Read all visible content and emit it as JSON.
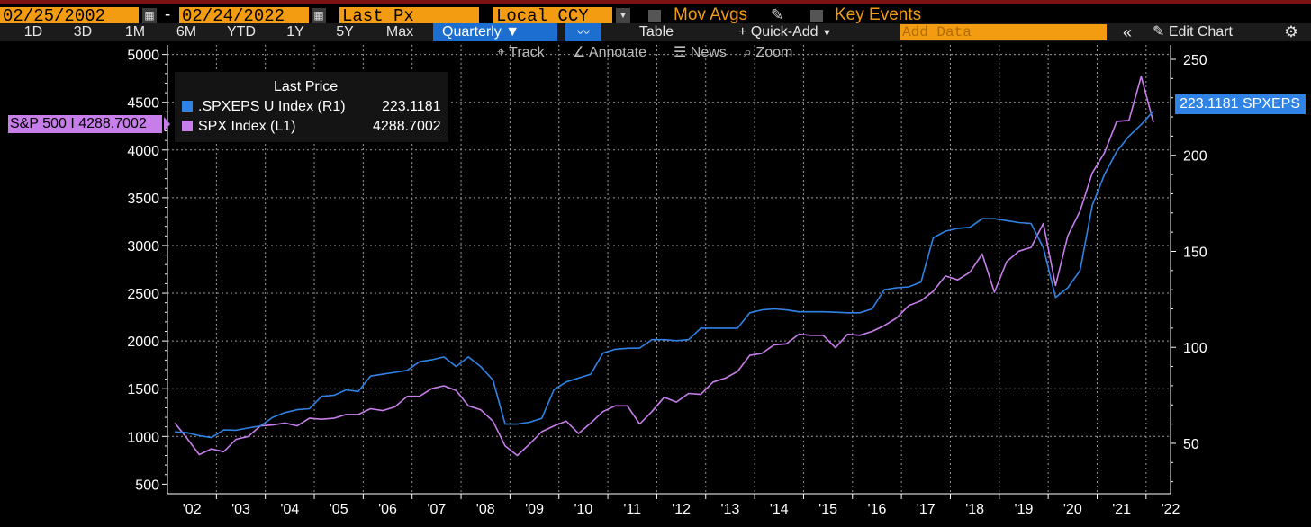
{
  "toolbar": {
    "start_date": "02/25/2002",
    "end_date": "02/24/2022",
    "date_separator": "-",
    "field": "Last Px",
    "currency": "Local CCY",
    "mov_avgs": "Mov Avgs",
    "key_events": "Key Events"
  },
  "periods": [
    "1D",
    "3D",
    "1M",
    "6M",
    "YTD",
    "1Y",
    "5Y",
    "Max"
  ],
  "frequency": "Quarterly",
  "table_label": "Table",
  "quick_add": "+ Quick-Add",
  "add_data_placeholder": "Add Data",
  "edit_chart": "Edit Chart",
  "chart_tools": {
    "track": "Track",
    "annotate": "Annotate",
    "news": "News",
    "zoom": "Zoom"
  },
  "legend": {
    "title": "Last Price",
    "series": [
      {
        "name": ".SPXEPS U Index  (R1)",
        "value": "223.1181",
        "color": "#2f83e6"
      },
      {
        "name": "SPX Index  (L1)",
        "value": "4288.7002",
        "color": "#c77dea"
      }
    ]
  },
  "spx_tag": "S&P 500 I 4288.7002",
  "eps_tag": "223.1181 SPXEPS",
  "chart_data": {
    "type": "line",
    "x_tick_labels": [
      "'02",
      "'03",
      "'04",
      "'05",
      "'06",
      "'07",
      "'08",
      "'09",
      "'10",
      "'11",
      "'12",
      "'13",
      "'14",
      "'15",
      "'16",
      "'17",
      "'18",
      "'19",
      "'20",
      "'21",
      "'22"
    ],
    "left_ticks": [
      500,
      1000,
      1500,
      2000,
      2500,
      3000,
      3500,
      4000,
      4500,
      5000
    ],
    "right_ticks": [
      50,
      100,
      150,
      200,
      250
    ],
    "ylim_left": [
      400,
      5100
    ],
    "ylim_right": [
      23.75,
      257.5
    ],
    "grid": true,
    "legend_position": "top-left",
    "series": [
      {
        "name": "SPX Index",
        "axis": "left",
        "color": "#c77dea",
        "start_year": 2002.15,
        "step": 0.25,
        "values": [
          1140,
          980,
          810,
          870,
          840,
          970,
          1000,
          1110,
          1120,
          1140,
          1110,
          1190,
          1180,
          1190,
          1230,
          1230,
          1290,
          1270,
          1310,
          1420,
          1420,
          1500,
          1530,
          1480,
          1320,
          1280,
          1160,
          900,
          800,
          920,
          1050,
          1110,
          1160,
          1030,
          1140,
          1260,
          1320,
          1320,
          1130,
          1260,
          1410,
          1360,
          1450,
          1440,
          1570,
          1610,
          1680,
          1850,
          1870,
          1960,
          1970,
          2070,
          2060,
          2060,
          1930,
          2070,
          2060,
          2100,
          2160,
          2240,
          2370,
          2420,
          2520,
          2680,
          2640,
          2720,
          2910,
          2510,
          2830,
          2940,
          2980,
          3230,
          2580,
          3100,
          3360,
          3760,
          3970,
          4300,
          4310,
          4770,
          4288.7002
        ]
      },
      {
        "name": ".SPXEPS U Index",
        "axis": "right",
        "color": "#2f83e6",
        "start_year": 2002.15,
        "step": 0.25,
        "values": [
          56,
          55.5,
          54,
          53,
          57,
          56.8,
          58,
          59,
          63.5,
          66,
          67.5,
          68,
          74.5,
          75,
          77.8,
          77,
          85,
          86,
          87,
          88,
          92.5,
          93.5,
          95,
          90,
          95,
          90,
          83,
          60,
          60,
          61,
          63,
          78,
          82,
          84,
          86,
          97,
          99,
          99.5,
          99.6,
          104,
          104,
          103.5,
          104,
          110,
          110,
          110,
          110,
          118,
          119.5,
          120,
          119.5,
          118.5,
          118.5,
          118.5,
          118.3,
          118,
          118,
          120,
          130,
          131,
          131.5,
          134,
          157,
          160.5,
          162,
          162.5,
          167,
          167,
          166,
          165,
          164.5,
          152,
          126,
          131,
          140,
          174,
          190,
          202,
          210,
          216,
          223.1181
        ]
      }
    ]
  }
}
